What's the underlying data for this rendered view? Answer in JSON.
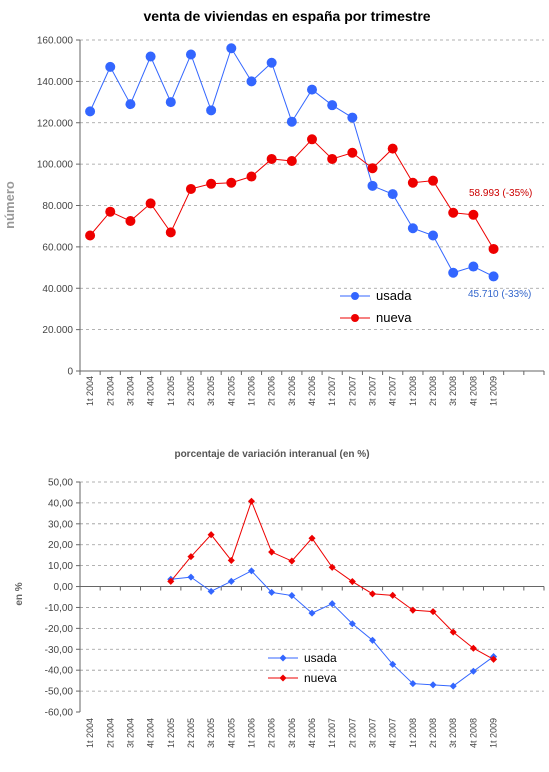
{
  "chart_data": [
    {
      "type": "line",
      "title": "venta de viviendas en españa por trimestre",
      "ylabel": "número",
      "ylim": [
        0,
        160000
      ],
      "yticks": [
        "0",
        "20.000",
        "40.000",
        "60.000",
        "80.000",
        "100.000",
        "120.000",
        "140.000",
        "160.000"
      ],
      "grid": true,
      "legend": "center-right",
      "categories": [
        "1t 2004",
        "2t 2004",
        "3t 2004",
        "4t 2004",
        "1t 2005",
        "2t 2005",
        "3t 2005",
        "4t 2005",
        "1t 2006",
        "2t 2006",
        "3t 2006",
        "4t 2006",
        "1t 2007",
        "2t 2007",
        "3t 2007",
        "4t 2007",
        "1t 2008",
        "2t 2008",
        "3t 2008",
        "4t 2008",
        "1t 2009"
      ],
      "series": [
        {
          "name": "usada",
          "color": "#3366ff",
          "values": [
            125500,
            147000,
            129000,
            152000,
            130000,
            153000,
            126000,
            156000,
            140000,
            149000,
            120500,
            136000,
            128500,
            122500,
            89500,
            85500,
            69000,
            65500,
            47500,
            50500,
            45710
          ]
        },
        {
          "name": "nueva",
          "color": "#ee0000",
          "values": [
            65500,
            77000,
            72500,
            81000,
            67000,
            88000,
            90500,
            91000,
            94000,
            102500,
            101500,
            112000,
            102500,
            105500,
            98000,
            107500,
            91000,
            92000,
            76500,
            75500,
            58993
          ]
        }
      ],
      "annotations": [
        {
          "text": "58.993 (-35%)",
          "color": "#cc0000"
        },
        {
          "text": "45.710 (-33%)",
          "color": "#3366cc"
        }
      ]
    },
    {
      "type": "line",
      "title": "porcentaje de variación interanual (en %)",
      "ylabel": "en %",
      "ylim": [
        -60,
        50
      ],
      "yticks": [
        "-60,00",
        "-50,00",
        "-40,00",
        "-30,00",
        "-20,00",
        "-10,00",
        "0,00",
        "10,00",
        "20,00",
        "30,00",
        "40,00",
        "50,00"
      ],
      "grid": true,
      "legend": "bottom-center",
      "categories": [
        "1t 2004",
        "2t 2004",
        "3t 2004",
        "4t 2004",
        "1t 2005",
        "2t 2005",
        "3t 2005",
        "4t 2005",
        "1t 2006",
        "2t 2006",
        "3t 2006",
        "4t 2006",
        "1t 2007",
        "2t 2007",
        "3t 2007",
        "4t 2007",
        "1t 2008",
        "2t 2008",
        "3t 2008",
        "4t 2008",
        "1t 2009"
      ],
      "series": [
        {
          "name": "usada",
          "color": "#3366ff",
          "values": [
            null,
            null,
            null,
            null,
            3.5,
            4.5,
            -2.3,
            2.5,
            7.5,
            -2.8,
            -4.3,
            -12.7,
            -8.2,
            -17.8,
            -25.7,
            -37.2,
            -46.4,
            -47,
            -47.6,
            -40.5,
            -33.5
          ]
        },
        {
          "name": "nueva",
          "color": "#ee0000",
          "values": [
            null,
            null,
            null,
            null,
            2.5,
            14.3,
            24.8,
            12.5,
            40.8,
            16.5,
            12.2,
            23.1,
            9.2,
            2.4,
            -3.5,
            -4.2,
            -11.3,
            -12,
            -21.8,
            -29.5,
            -34.8
          ]
        }
      ]
    }
  ]
}
